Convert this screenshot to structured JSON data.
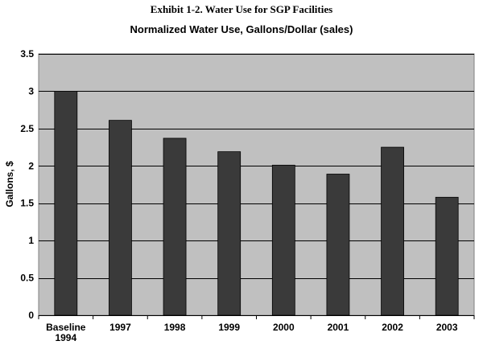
{
  "exhibit_title": "Exhibit 1-2.  Water Use for SGP Facilities",
  "colors": {
    "plot_bg": "#c0c0c0",
    "bar": "#3a3a3a",
    "gridline": "#000000"
  },
  "chart_data": {
    "type": "bar",
    "title": "Normalized Water Use, Gallons/Dollar (sales)",
    "xlabel": "",
    "ylabel": "Gallons, $",
    "ylim": [
      0,
      3.5
    ],
    "yticks": [
      0,
      0.5,
      1,
      1.5,
      2,
      2.5,
      3,
      3.5
    ],
    "ytick_labels": [
      "0",
      "0.5",
      "1",
      "1.5",
      "2",
      "2.5",
      "3",
      "3.5"
    ],
    "grid": true,
    "legend": "none",
    "categories": [
      [
        "Baseline",
        "1994"
      ],
      [
        "1997"
      ],
      [
        "1998"
      ],
      [
        "1999"
      ],
      [
        "2000"
      ],
      [
        "2001"
      ],
      [
        "2002"
      ],
      [
        "2003"
      ]
    ],
    "values": [
      3.0,
      2.61,
      2.37,
      2.19,
      2.01,
      1.89,
      2.25,
      1.58
    ]
  }
}
